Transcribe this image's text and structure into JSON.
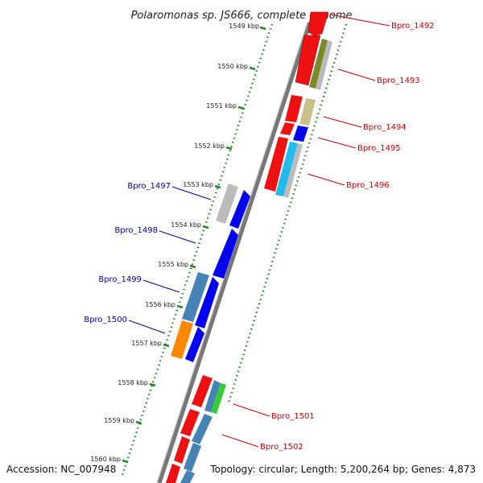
{
  "title": "Polaromonas sp. JS666, complete genome",
  "footer": {
    "accession": "Accession: NC_007948",
    "summary": "Topology: circular; Length: 5,200,264 bp; Genes: 4,873"
  },
  "colors": {
    "backbone": "#888888",
    "tick": "#228b22",
    "right_label": "#cc0000",
    "left_label": "#0000aa"
  },
  "ticks": [
    {
      "label": "1549 kbp"
    },
    {
      "label": "1550 kbp"
    },
    {
      "label": "1551 kbp"
    },
    {
      "label": "1552 kbp"
    },
    {
      "label": "1553 kbp"
    },
    {
      "label": "1554 kbp"
    },
    {
      "label": "1555 kbp"
    },
    {
      "label": "1556 kbp"
    },
    {
      "label": "1557 kbp"
    },
    {
      "label": "1558 kbp"
    },
    {
      "label": "1559 kbp"
    },
    {
      "label": "1560 kbp"
    }
  ],
  "right_labels": [
    {
      "text": "Bpro_1492"
    },
    {
      "text": "Bpro_1493"
    },
    {
      "text": "Bpro_1494"
    },
    {
      "text": "Bpro_1495"
    },
    {
      "text": "Bpro_1496"
    },
    {
      "text": "Bpro_1501"
    },
    {
      "text": "Bpro_1502"
    }
  ],
  "left_labels": [
    {
      "text": "Bpro_1497"
    },
    {
      "text": "Bpro_1498"
    },
    {
      "text": "Bpro_1499"
    },
    {
      "text": "Bpro_1500"
    }
  ]
}
